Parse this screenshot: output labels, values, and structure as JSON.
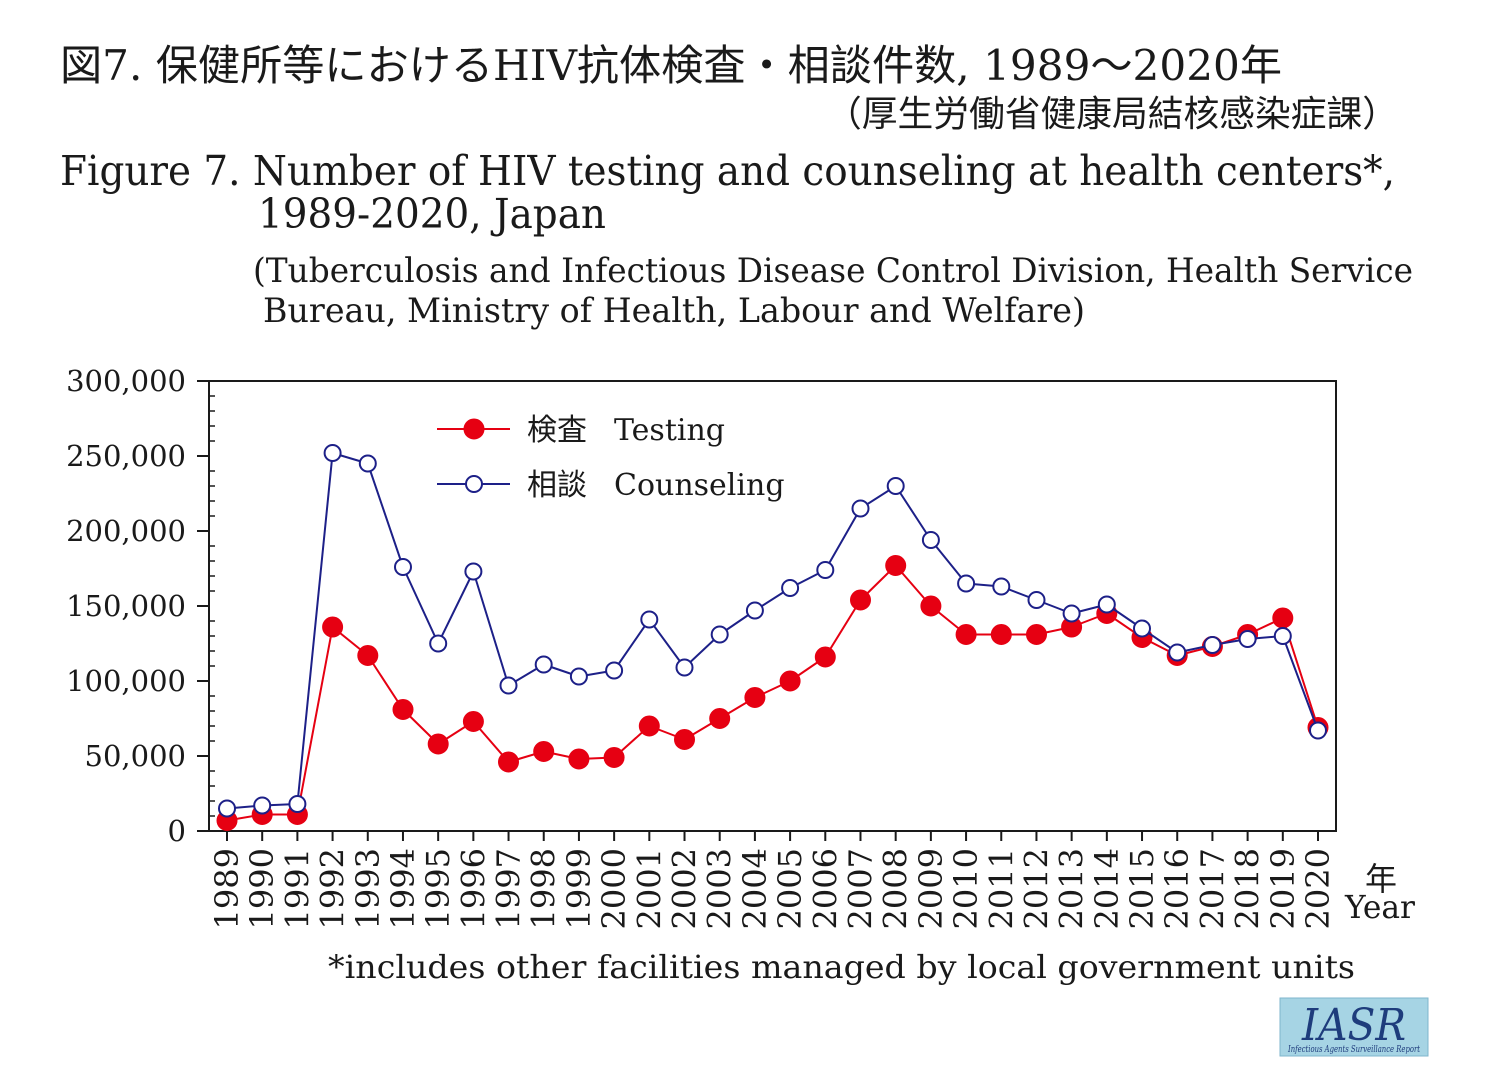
{
  "chart_data": {
    "type": "line",
    "title_ja": "図7. 保健所等におけるHIV抗体検査・相談件数, 1989～2020年",
    "source_ja": "（厚生労働省健康局結核感染症課）",
    "title": [
      "Figure 7. Number of HIV testing and counseling at health centers*,",
      "1989-2020, Japan"
    ],
    "source": [
      "(Tuberculosis and Infectious Disease Control Division, Health Service",
      "Bureau, Ministry of Health, Labour and Welfare)"
    ],
    "xlabel": [
      "年",
      "Year"
    ],
    "ylabel": "",
    "x": [
      1989,
      1990,
      1991,
      1992,
      1993,
      1994,
      1995,
      1996,
      1997,
      1998,
      1999,
      2000,
      2001,
      2002,
      2003,
      2004,
      2005,
      2006,
      2007,
      2008,
      2009,
      2010,
      2011,
      2012,
      2013,
      2014,
      2015,
      2016,
      2017,
      2018,
      2019,
      2020
    ],
    "ylim": [
      0,
      300000
    ],
    "yticks": [
      0,
      50000,
      100000,
      150000,
      200000,
      250000,
      300000
    ],
    "ytick_labels": [
      "0",
      "50,000",
      "100,000",
      "150,000",
      "200,000",
      "250,000",
      "300,000"
    ],
    "grid": false,
    "legend_position": "top-left",
    "series": [
      {
        "name_ja": "検査",
        "name": "Testing",
        "color": "#e60012",
        "marker": "filled-circle",
        "values": [
          7000,
          11000,
          11000,
          136000,
          117000,
          81000,
          58000,
          73000,
          46000,
          53000,
          48000,
          49000,
          70000,
          61000,
          75000,
          89000,
          100000,
          116000,
          154000,
          177000,
          150000,
          131000,
          131000,
          131000,
          136000,
          145000,
          129000,
          117000,
          123000,
          131000,
          142000,
          69000
        ]
      },
      {
        "name_ja": "相談",
        "name": "Counseling",
        "color": "#1d2088",
        "marker": "open-circle",
        "values": [
          15000,
          17000,
          18000,
          252000,
          245000,
          176000,
          125000,
          173000,
          97000,
          111000,
          103000,
          107000,
          141000,
          109000,
          131000,
          147000,
          162000,
          174000,
          215000,
          230000,
          194000,
          165000,
          163000,
          154000,
          145000,
          151000,
          135000,
          119000,
          124000,
          128000,
          130000,
          67000
        ]
      }
    ],
    "footnote": "*includes other facilities managed by local government units"
  },
  "logo": {
    "text": "IASR",
    "subtitle": "Infectious Agents Surveillance Report",
    "background": "#a6d4e4",
    "color": "#1e3c7c"
  }
}
